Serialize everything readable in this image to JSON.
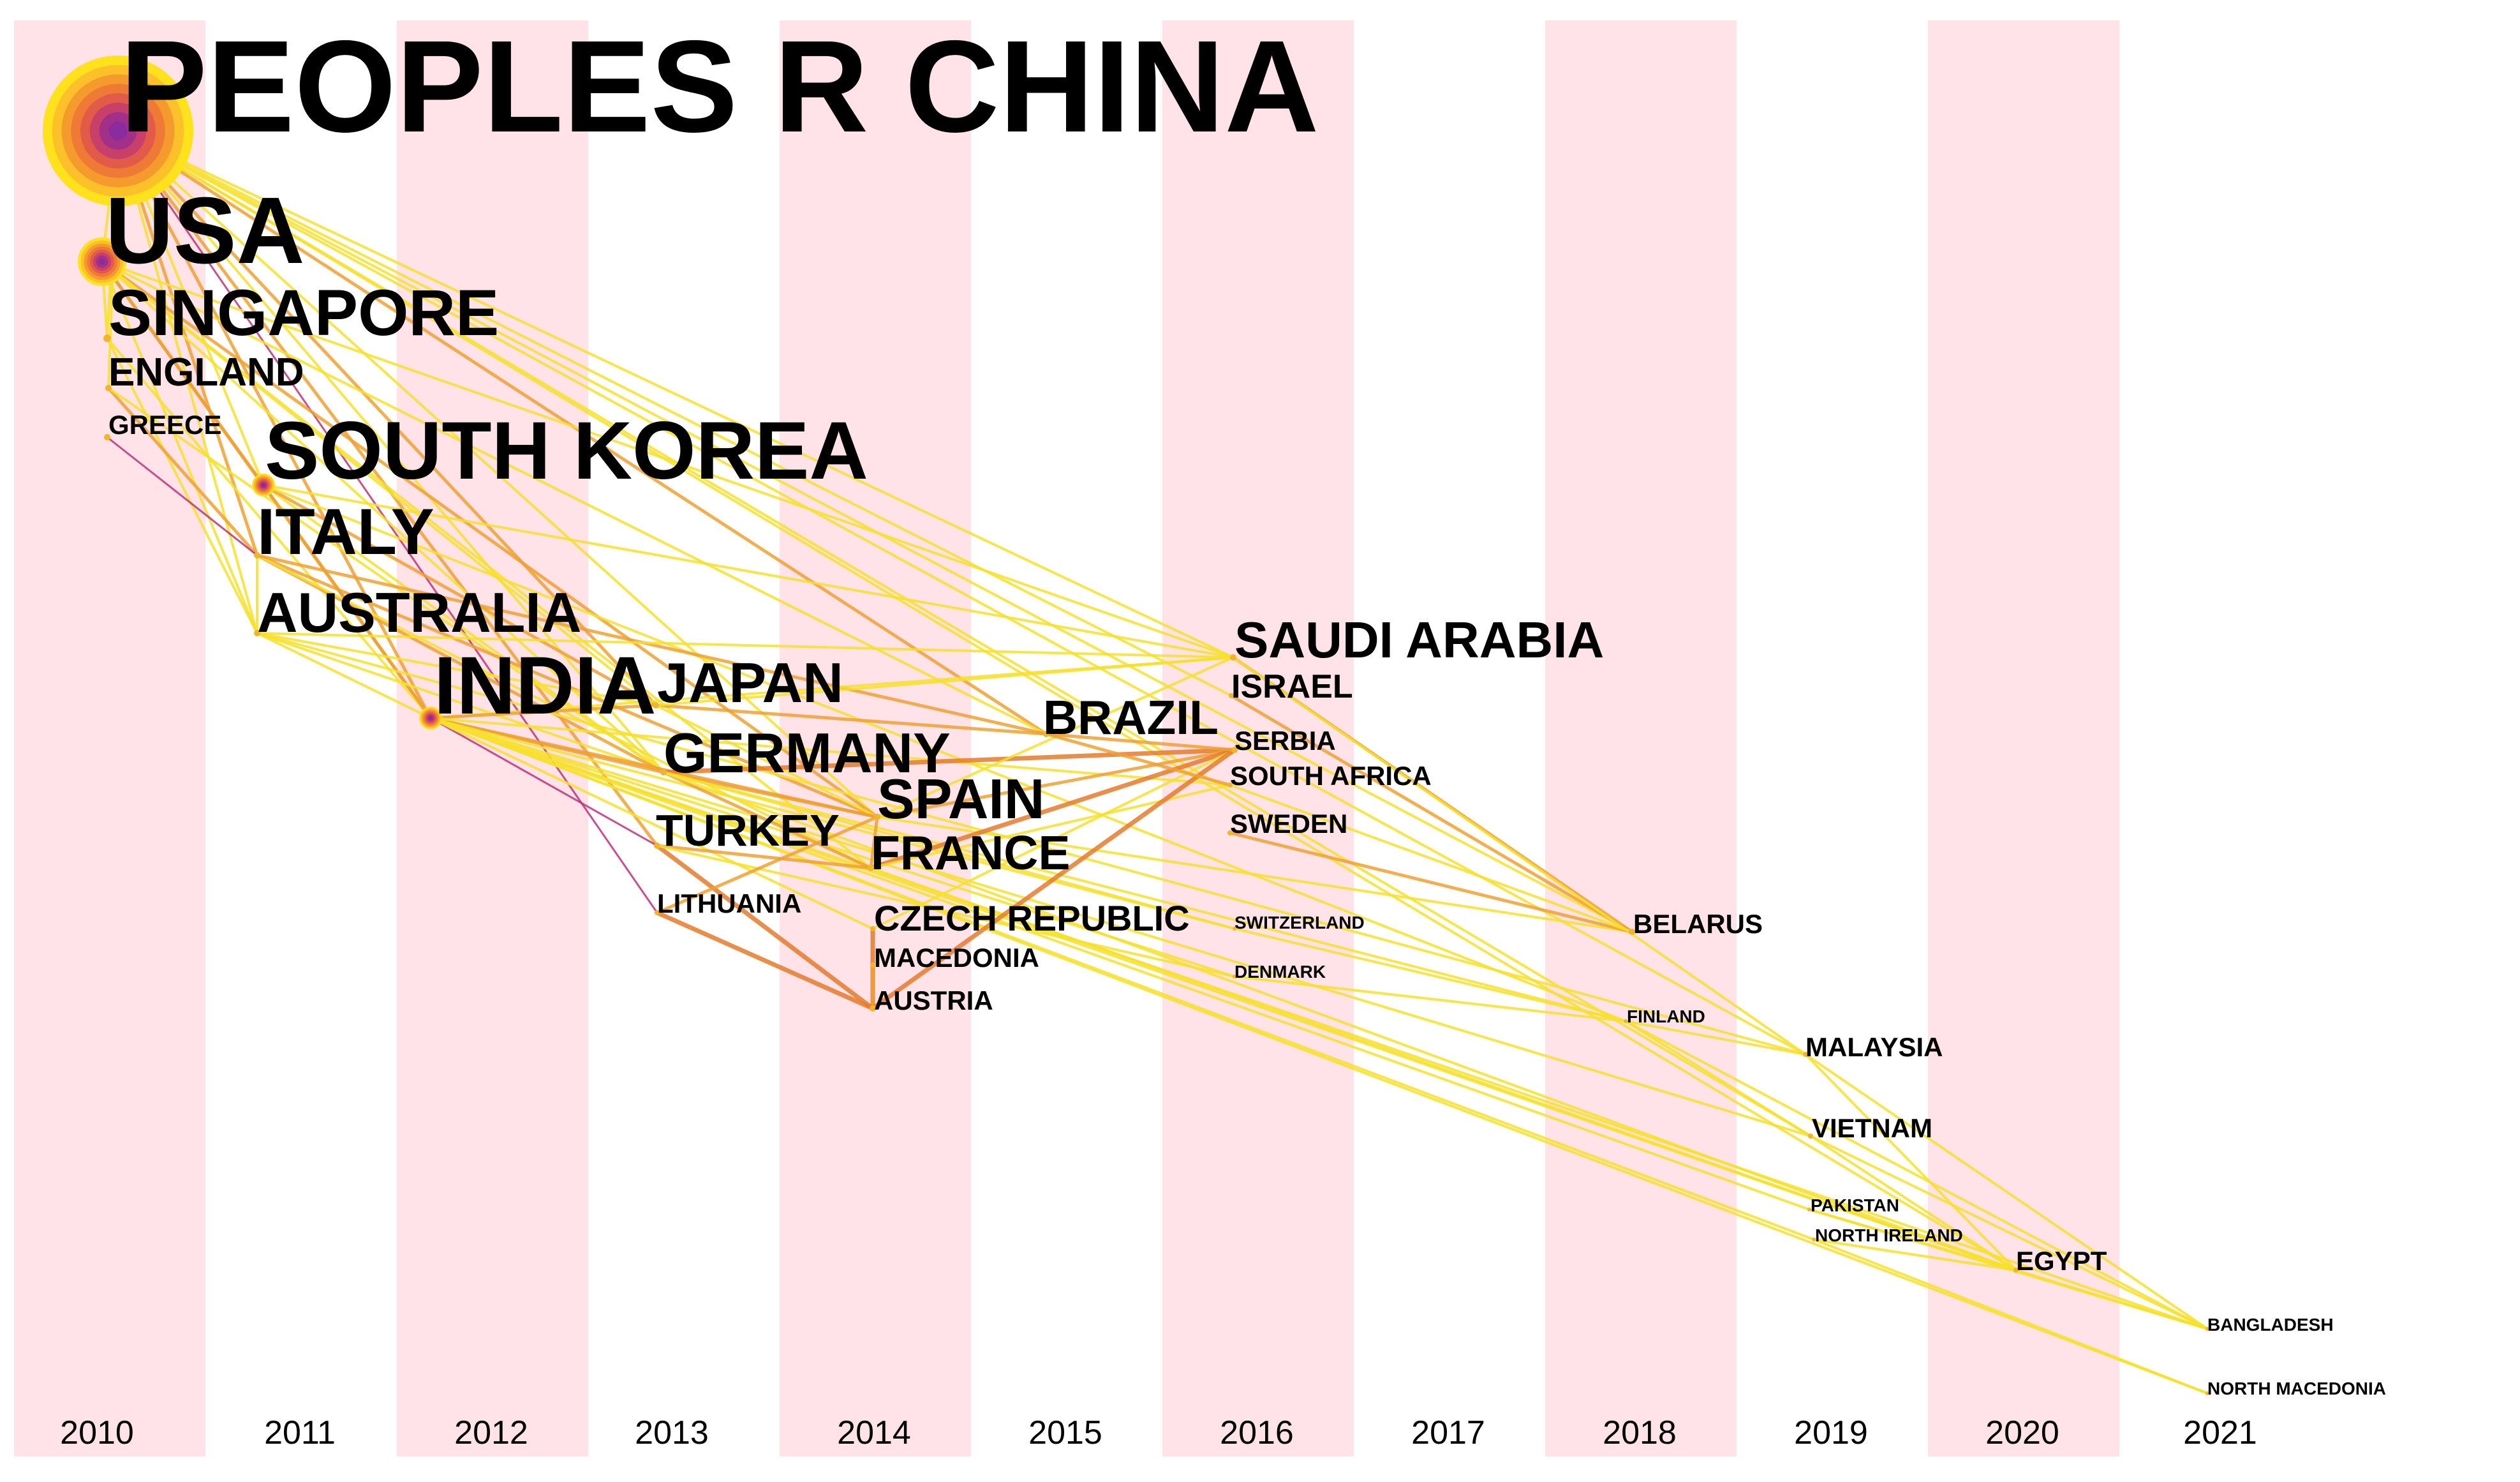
{
  "years": [
    "2010",
    "2011",
    "2012",
    "2013",
    "2014",
    "2015",
    "2016",
    "2017",
    "2018",
    "2019",
    "2020",
    "2021"
  ],
  "colors": {
    "band": "#ffe3e8",
    "link_yellow": "#f7e12a",
    "link_orange": "#f0a030",
    "link_dark_orange": "#e67a2c",
    "link_magenta": "#c0307a",
    "label": "#000000"
  },
  "nodes": [
    {
      "id": "china",
      "label": "PEOPLES R CHINA",
      "year": 2010
    },
    {
      "id": "usa",
      "label": "USA",
      "year": 2010
    },
    {
      "id": "singapore",
      "label": "SINGAPORE",
      "year": 2010
    },
    {
      "id": "england",
      "label": "ENGLAND",
      "year": 2010
    },
    {
      "id": "greece",
      "label": "GREECE",
      "year": 2010
    },
    {
      "id": "southkorea",
      "label": "SOUTH KOREA",
      "year": 2011
    },
    {
      "id": "italy",
      "label": "ITALY",
      "year": 2011
    },
    {
      "id": "australia",
      "label": "AUSTRALIA",
      "year": 2011
    },
    {
      "id": "india",
      "label": "INDIA",
      "year": 2012
    },
    {
      "id": "japan",
      "label": "JAPAN",
      "year": 2013
    },
    {
      "id": "germany",
      "label": "GERMANY",
      "year": 2013
    },
    {
      "id": "turkey",
      "label": "TURKEY",
      "year": 2013
    },
    {
      "id": "lithuania",
      "label": "LITHUANIA",
      "year": 2013
    },
    {
      "id": "spain",
      "label": "SPAIN",
      "year": 2014
    },
    {
      "id": "france",
      "label": "FRANCE",
      "year": 2014
    },
    {
      "id": "czech",
      "label": "CZECH REPUBLIC",
      "year": 2014
    },
    {
      "id": "macedonia",
      "label": "MACEDONIA",
      "year": 2014
    },
    {
      "id": "austria",
      "label": "AUSTRIA",
      "year": 2014
    },
    {
      "id": "brazil",
      "label": "BRAZIL",
      "year": 2015
    },
    {
      "id": "saudi",
      "label": "SAUDI ARABIA",
      "year": 2016
    },
    {
      "id": "israel",
      "label": "ISRAEL",
      "year": 2016
    },
    {
      "id": "serbia",
      "label": "SERBIA",
      "year": 2016
    },
    {
      "id": "southafrica",
      "label": "SOUTH AFRICA",
      "year": 2016
    },
    {
      "id": "sweden",
      "label": "SWEDEN",
      "year": 2016
    },
    {
      "id": "switzerland",
      "label": "SWITZERLAND",
      "year": 2016
    },
    {
      "id": "denmark",
      "label": "DENMARK",
      "year": 2016
    },
    {
      "id": "belarus",
      "label": "BELARUS",
      "year": 2018
    },
    {
      "id": "finland",
      "label": "FINLAND",
      "year": 2018
    },
    {
      "id": "malaysia",
      "label": "MALAYSIA",
      "year": 2019
    },
    {
      "id": "vietnam",
      "label": "VIETNAM",
      "year": 2019
    },
    {
      "id": "pakistan",
      "label": "PAKISTAN",
      "year": 2019
    },
    {
      "id": "northireland",
      "label": "NORTH IRELAND",
      "year": 2019
    },
    {
      "id": "egypt",
      "label": "EGYPT",
      "year": 2020
    },
    {
      "id": "bangladesh",
      "label": "BANGLADESH",
      "year": 2021
    },
    {
      "id": "northmacedonia",
      "label": "NORTH MACEDONIA",
      "year": 2021
    }
  ],
  "links": [
    [
      "china",
      "southkorea",
      "y"
    ],
    [
      "china",
      "italy",
      "o"
    ],
    [
      "china",
      "india",
      "o"
    ],
    [
      "china",
      "saudi",
      "y"
    ],
    [
      "china",
      "germany",
      "y"
    ],
    [
      "china",
      "spain",
      "y"
    ],
    [
      "china",
      "brazil",
      "o"
    ],
    [
      "china",
      "israel",
      "y"
    ],
    [
      "china",
      "japan",
      "o"
    ],
    [
      "china",
      "usa",
      "y"
    ],
    [
      "china",
      "belarus",
      "y"
    ],
    [
      "china",
      "egypt",
      "y"
    ],
    [
      "china",
      "vietnam",
      "y"
    ],
    [
      "china",
      "malaysia",
      "y"
    ],
    [
      "china",
      "australia",
      "y"
    ],
    [
      "china",
      "turkey",
      "o"
    ],
    [
      "china",
      "lithuania",
      "m"
    ],
    [
      "china",
      "singapore",
      "y"
    ],
    [
      "china",
      "england",
      "y"
    ],
    [
      "usa",
      "southkorea",
      "o"
    ],
    [
      "usa",
      "india",
      "o"
    ],
    [
      "usa",
      "germany",
      "y"
    ],
    [
      "usa",
      "saudi",
      "y"
    ],
    [
      "usa",
      "spain",
      "o"
    ],
    [
      "usa",
      "japan",
      "y"
    ],
    [
      "usa",
      "singapore",
      "y"
    ],
    [
      "usa",
      "australia",
      "y"
    ],
    [
      "usa",
      "france",
      "y"
    ],
    [
      "usa",
      "brazil",
      "y"
    ],
    [
      "singapore",
      "australia",
      "y"
    ],
    [
      "singapore",
      "india",
      "y"
    ],
    [
      "england",
      "italy",
      "o"
    ],
    [
      "england",
      "germany",
      "y"
    ],
    [
      "greece",
      "italy",
      "m"
    ],
    [
      "southkorea",
      "saudi",
      "y"
    ],
    [
      "southkorea",
      "india",
      "o"
    ],
    [
      "southkorea",
      "germany",
      "y"
    ],
    [
      "southkorea",
      "japan",
      "o"
    ],
    [
      "southkorea",
      "finland",
      "y"
    ],
    [
      "italy",
      "germany",
      "o"
    ],
    [
      "italy",
      "spain",
      "o"
    ],
    [
      "italy",
      "france",
      "y"
    ],
    [
      "italy",
      "brazil",
      "o"
    ],
    [
      "italy",
      "australia",
      "y"
    ],
    [
      "australia",
      "india",
      "y"
    ],
    [
      "australia",
      "saudi",
      "y"
    ],
    [
      "australia",
      "japan",
      "y"
    ],
    [
      "australia",
      "malaysia",
      "y"
    ],
    [
      "australia",
      "germany",
      "y"
    ],
    [
      "india",
      "germany",
      "o"
    ],
    [
      "india",
      "turkey",
      "m"
    ],
    [
      "india",
      "saudi",
      "y"
    ],
    [
      "india",
      "spain",
      "o"
    ],
    [
      "india",
      "japan",
      "o"
    ],
    [
      "india",
      "southafrica",
      "y"
    ],
    [
      "india",
      "vietnam",
      "y"
    ],
    [
      "india",
      "pakistan",
      "y"
    ],
    [
      "india",
      "egypt",
      "y"
    ],
    [
      "india",
      "bangladesh",
      "y"
    ],
    [
      "india",
      "northmacedonia",
      "y"
    ],
    [
      "india",
      "czech",
      "y"
    ],
    [
      "india",
      "northireland",
      "y"
    ],
    [
      "india",
      "switzerland",
      "y"
    ],
    [
      "india",
      "denmark",
      "y"
    ],
    [
      "japan",
      "brazil",
      "o"
    ],
    [
      "japan",
      "spain",
      "y"
    ],
    [
      "japan",
      "saudi",
      "y"
    ],
    [
      "germany",
      "serbia",
      "d"
    ],
    [
      "germany",
      "spain",
      "o"
    ],
    [
      "germany",
      "france",
      "o"
    ],
    [
      "germany",
      "finland",
      "y"
    ],
    [
      "germany",
      "egypt",
      "y"
    ],
    [
      "germany",
      "switzerland",
      "y"
    ],
    [
      "turkey",
      "france",
      "o"
    ],
    [
      "turkey",
      "austria",
      "d"
    ],
    [
      "turkey",
      "denmark",
      "y"
    ],
    [
      "lithuania",
      "austria",
      "d"
    ],
    [
      "lithuania",
      "spain",
      "o"
    ],
    [
      "spain",
      "france",
      "o"
    ],
    [
      "spain",
      "serbia",
      "o"
    ],
    [
      "spain",
      "saudi",
      "y"
    ],
    [
      "spain",
      "belarus",
      "y"
    ],
    [
      "france",
      "serbia",
      "d"
    ],
    [
      "france",
      "southafrica",
      "y"
    ],
    [
      "france",
      "egypt",
      "y"
    ],
    [
      "czech",
      "austria",
      "d"
    ],
    [
      "czech",
      "serbia",
      "y"
    ],
    [
      "macedonia",
      "austria",
      "o"
    ],
    [
      "austria",
      "serbia",
      "d"
    ],
    [
      "brazil",
      "southafrica",
      "o"
    ],
    [
      "brazil",
      "serbia",
      "o"
    ],
    [
      "saudi",
      "belarus",
      "o"
    ],
    [
      "israel",
      "belarus",
      "o"
    ],
    [
      "saudi",
      "malaysia",
      "y"
    ],
    [
      "sweden",
      "belarus",
      "o"
    ],
    [
      "southafrica",
      "belarus",
      "y"
    ],
    [
      "switzerland",
      "finland",
      "y"
    ],
    [
      "denmark",
      "finland",
      "y"
    ],
    [
      "finland",
      "malaysia",
      "y"
    ],
    [
      "finland",
      "vietnam",
      "y"
    ],
    [
      "finland",
      "bangladesh",
      "y"
    ],
    [
      "malaysia",
      "egypt",
      "y"
    ],
    [
      "malaysia",
      "bangladesh",
      "y"
    ],
    [
      "vietnam",
      "egypt",
      "y"
    ],
    [
      "vietnam",
      "bangladesh",
      "y"
    ],
    [
      "pakistan",
      "egypt",
      "y"
    ],
    [
      "northireland",
      "egypt",
      "y"
    ],
    [
      "egypt",
      "bangladesh",
      "y"
    ],
    [
      "northireland",
      "northmacedonia",
      "y"
    ],
    [
      "pakistan",
      "bangladesh",
      "y"
    ]
  ]
}
